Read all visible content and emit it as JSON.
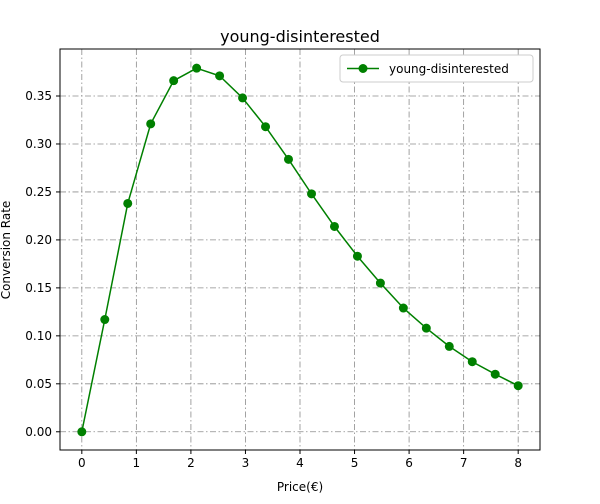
{
  "chart_data": {
    "type": "line",
    "title": "young-disinterested",
    "xlabel": "Price(€)",
    "ylabel": "Conversion Rate",
    "xlim": [
      -0.4,
      8.4
    ],
    "ylim": [
      -0.019,
      0.399
    ],
    "x_ticks": [
      0,
      1,
      2,
      3,
      4,
      5,
      6,
      7,
      8
    ],
    "y_ticks": [
      0.0,
      0.05,
      0.1,
      0.15,
      0.2,
      0.25,
      0.3,
      0.35
    ],
    "x_tick_labels": [
      "0",
      "1",
      "2",
      "3",
      "4",
      "5",
      "6",
      "7",
      "8"
    ],
    "y_tick_labels": [
      "0.00",
      "0.05",
      "0.10",
      "0.15",
      "0.20",
      "0.25",
      "0.30",
      "0.35"
    ],
    "grid": true,
    "grid_style": "dashdot",
    "legend_position": "upper-right",
    "series": [
      {
        "name": "young-disinterested",
        "color": "#008000",
        "marker": "circle",
        "x": [
          0,
          0.421,
          0.842,
          1.263,
          1.684,
          2.105,
          2.526,
          2.947,
          3.368,
          3.789,
          4.211,
          4.632,
          5.053,
          5.474,
          5.895,
          6.316,
          6.737,
          7.158,
          7.579,
          8.0
        ],
        "y": [
          0.0,
          0.117,
          0.238,
          0.321,
          0.366,
          0.379,
          0.371,
          0.348,
          0.318,
          0.284,
          0.248,
          0.214,
          0.183,
          0.155,
          0.129,
          0.108,
          0.089,
          0.073,
          0.06,
          0.048
        ]
      }
    ]
  }
}
